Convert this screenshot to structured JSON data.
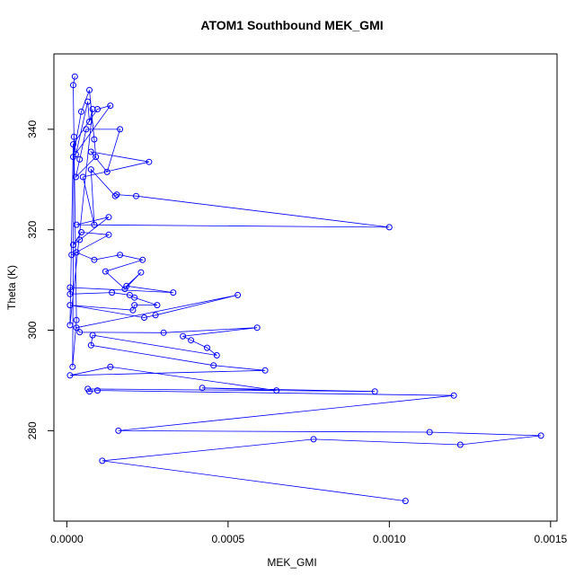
{
  "chart_data": {
    "type": "line",
    "title": "ATOM1 Southbound MEK_GMI",
    "xlabel": "MEK_GMI",
    "ylabel": "Theta (K)",
    "xlim": [
      -4e-05,
      0.00152
    ],
    "ylim": [
      262,
      355
    ],
    "x_ticks": [
      0.0,
      0.0005,
      0.001,
      0.0015
    ],
    "x_tick_labels": [
      "0.0000",
      "0.0005",
      "0.0010",
      "0.0015"
    ],
    "y_ticks": [
      280,
      300,
      320,
      340
    ],
    "y_tick_labels": [
      "280",
      "300",
      "320",
      "340"
    ],
    "series": [
      {
        "color": "#0000ff",
        "marker": "open-circle",
        "points": [
          [
            2.5e-05,
            350.5
          ],
          [
            2e-05,
            348.8
          ],
          [
            3e-05,
            302.0
          ],
          [
            1.8e-05,
            292.7
          ],
          [
            2.2e-05,
            338.5
          ],
          [
            2.8e-05,
            335.0
          ],
          [
            6.5e-05,
            345.5
          ],
          [
            7e-05,
            341.5
          ],
          [
            8e-05,
            344.0
          ],
          [
            1e-05,
            301.0
          ],
          [
            2e-05,
            337.0
          ],
          [
            9.5e-05,
            344.0
          ],
          [
            0.000135,
            344.7
          ],
          [
            2e-05,
            334.5
          ],
          [
            4.5e-05,
            343.5
          ],
          [
            7e-05,
            347.8
          ],
          [
            8.5e-05,
            338.0
          ],
          [
            9e-05,
            334.5
          ],
          [
            2.8e-05,
            330.5
          ],
          [
            4e-05,
            334.0
          ],
          [
            6e-05,
            340.0
          ],
          [
            0.000165,
            340.0
          ],
          [
            0.000125,
            331.5
          ],
          [
            7.5e-05,
            335.5
          ],
          [
            0.000255,
            333.5
          ],
          [
            5e-05,
            330.5
          ],
          [
            8.5e-05,
            321.0
          ],
          [
            7.5e-05,
            332.0
          ],
          [
            0.00015,
            326.7
          ],
          [
            0.000155,
            327.0
          ],
          [
            0.000215,
            326.7
          ],
          [
            0.001,
            320.5
          ],
          [
            3e-05,
            321.0
          ],
          [
            0.00013,
            322.5
          ],
          [
            4e-05,
            318.0
          ],
          [
            2e-05,
            317.0
          ],
          [
            4.5e-05,
            319.5
          ],
          [
            0.00013,
            319.0
          ],
          [
            1.5e-05,
            315.0
          ],
          [
            3e-05,
            315.5
          ],
          [
            8.5e-05,
            314.0
          ],
          [
            0.000165,
            315.0
          ],
          [
            0.000235,
            314.0
          ],
          [
            0.00012,
            311.7
          ],
          [
            0.00018,
            308.2
          ],
          [
            0.00023,
            311.5
          ],
          [
            0.000185,
            308.8
          ],
          [
            0.00033,
            307.5
          ],
          [
            1e-05,
            308.5
          ],
          [
            1e-05,
            307.2
          ],
          [
            0.00014,
            307.5
          ],
          [
            0.000195,
            307.0
          ],
          [
            0.00021,
            306.5
          ],
          [
            0.00028,
            305.0
          ],
          [
            0.00021,
            305.0
          ],
          [
            0.000205,
            304.0
          ],
          [
            1e-05,
            305.0
          ],
          [
            0.00024,
            302.5
          ],
          [
            0.000275,
            303.0
          ],
          [
            0.00053,
            307.0
          ],
          [
            3e-05,
            300.5
          ],
          [
            4e-05,
            299.6
          ],
          [
            0.0003,
            299.5
          ],
          [
            0.00059,
            300.5
          ],
          [
            0.00036,
            298.8
          ],
          [
            0.000385,
            298.0
          ],
          [
            0.000435,
            296.5
          ],
          [
            0.000465,
            295.0
          ],
          [
            8e-05,
            299.0
          ],
          [
            7.5e-05,
            297.0
          ],
          [
            0.000455,
            293.0
          ],
          [
            0.000615,
            292.0
          ],
          [
            1e-05,
            291.0
          ],
          [
            0.000135,
            292.7
          ],
          [
            0.00065,
            288.0
          ],
          [
            0.00042,
            288.5
          ],
          [
            0.000955,
            287.8
          ],
          [
            6.5e-05,
            288.3
          ],
          [
            7e-05,
            287.8
          ],
          [
            9.5e-05,
            288.0
          ],
          [
            0.0012,
            287.0
          ],
          [
            0.00016,
            280.0
          ],
          [
            0.001125,
            279.7
          ],
          [
            0.00147,
            279.0
          ],
          [
            0.00122,
            277.2
          ],
          [
            0.000765,
            278.3
          ],
          [
            0.00011,
            274.0
          ],
          [
            0.00105,
            266.0
          ]
        ]
      }
    ]
  }
}
